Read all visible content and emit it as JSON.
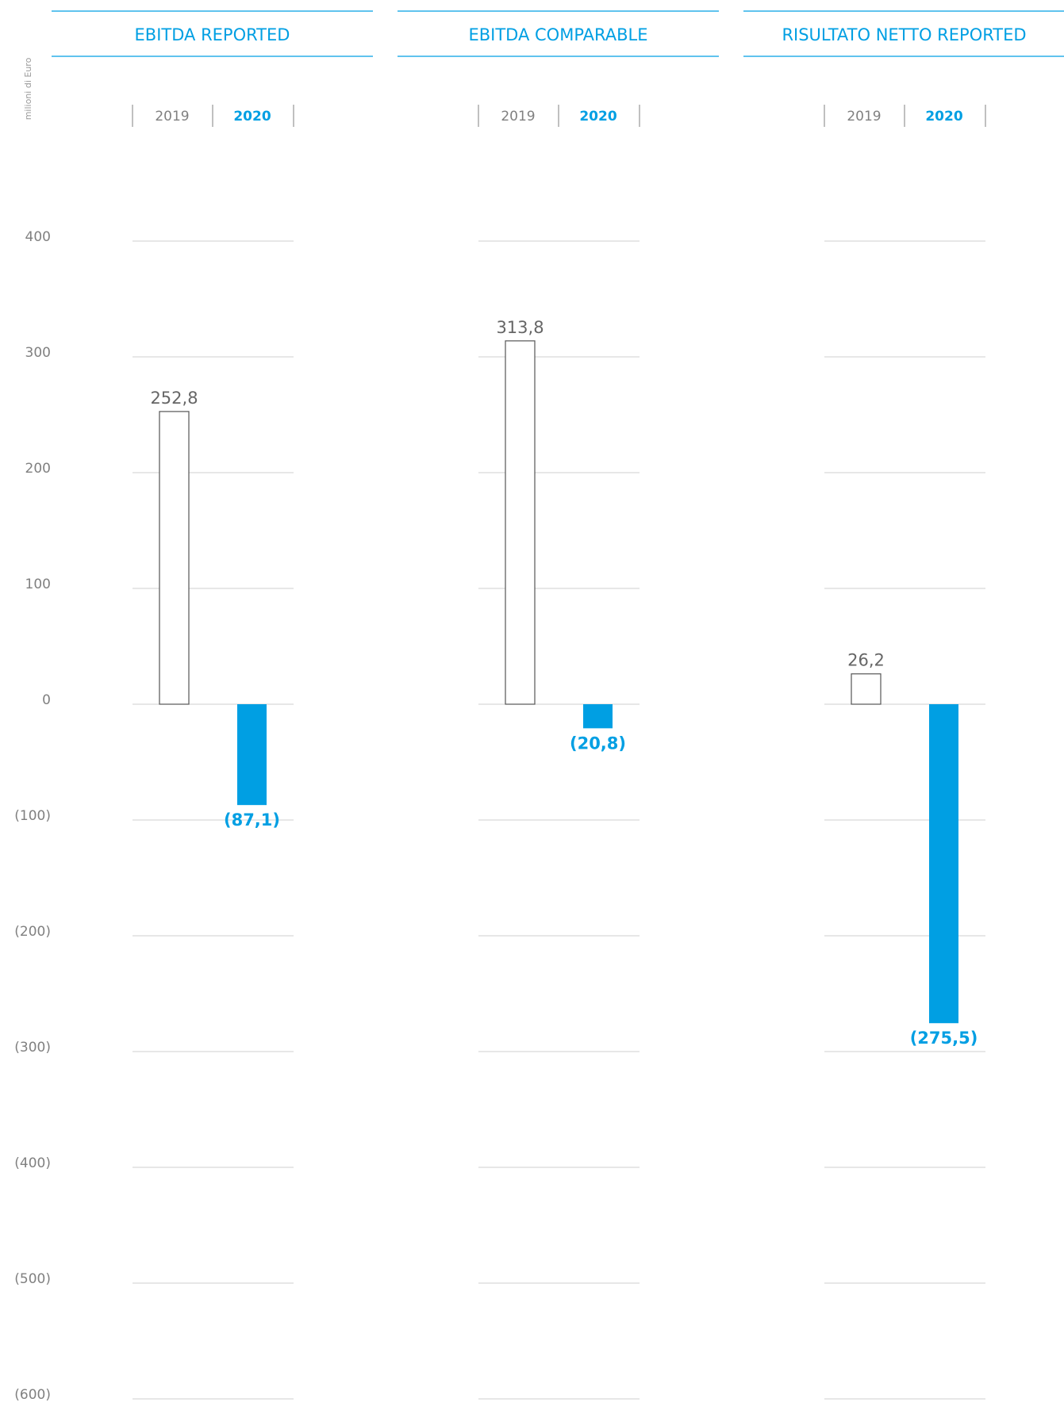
{
  "chart_data": [
    {
      "type": "bar",
      "title": "EBITDA REPORTED",
      "y_label": "milioni di Euro",
      "categories": [
        "2019",
        "2020"
      ],
      "values": [
        252.8,
        -87.1
      ],
      "value_labels": [
        "252,8",
        "(87,1)"
      ],
      "colors": [
        "#ffffff",
        "#009fe3"
      ],
      "ylim": [
        -600,
        400
      ],
      "yticks": [
        400,
        300,
        200,
        100,
        0,
        {
          "value": -100,
          "label": "(100)"
        },
        {
          "value": -200,
          "label": "(200)"
        },
        {
          "value": -300,
          "label": "(300)"
        },
        {
          "value": -400,
          "label": "(400)"
        },
        {
          "value": -500,
          "label": "(500)"
        },
        {
          "value": -600,
          "label": "(600)"
        }
      ],
      "grid": true
    },
    {
      "type": "bar",
      "title": "EBITDA COMPARABLE",
      "categories": [
        "2019",
        "2020"
      ],
      "values": [
        313.8,
        -20.8
      ],
      "value_labels": [
        "313,8",
        "(20,8)"
      ],
      "colors": [
        "#ffffff",
        "#009fe3"
      ],
      "ylim": [
        -600,
        400
      ],
      "yticks": [
        400,
        300,
        200,
        100,
        0,
        {
          "value": -100,
          "label": "(100)"
        },
        {
          "value": -200,
          "label": "(200)"
        },
        {
          "value": -300,
          "label": "(300)"
        },
        {
          "value": -400,
          "label": "(400)"
        },
        {
          "value": -500,
          "label": "(500)"
        },
        {
          "value": -600,
          "label": "(600)"
        }
      ],
      "grid": true
    },
    {
      "type": "bar",
      "title": "RISULTATO NETTO REPORTED",
      "categories": [
        "2019",
        "2020"
      ],
      "values": [
        26.2,
        -275.5
      ],
      "value_labels": [
        "26,2",
        "(275,5)"
      ],
      "colors": [
        "#ffffff",
        "#009fe3"
      ],
      "ylim": [
        -600,
        400
      ],
      "yticks": [
        400,
        300,
        200,
        100,
        0,
        {
          "value": -100,
          "label": "(100)"
        },
        {
          "value": -200,
          "label": "(200)"
        },
        {
          "value": -300,
          "label": "(300)"
        },
        {
          "value": -400,
          "label": "(400)"
        },
        {
          "value": -500,
          "label": "(500)"
        },
        {
          "value": -600,
          "label": "(600)"
        }
      ],
      "grid": true
    }
  ]
}
